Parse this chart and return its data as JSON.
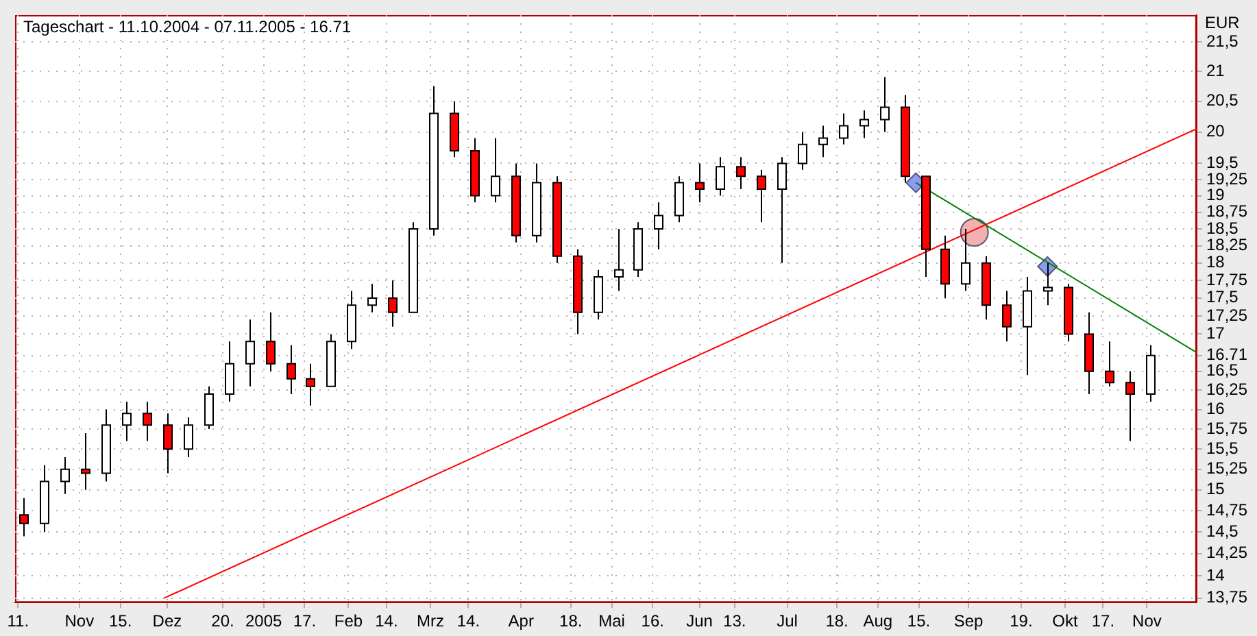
{
  "chart_data": {
    "type": "candlestick",
    "title": "Tageschart - 11.10.2004 - 07.11.2005 - 16.71",
    "ylabel": "EUR",
    "x": [
      "2004-10-13",
      "2004-10-20",
      "2004-10-27",
      "2004-11-03",
      "2004-11-10",
      "2004-11-17",
      "2004-11-24",
      "2004-12-01",
      "2004-12-08",
      "2004-12-15",
      "2004-12-22",
      "2004-12-29",
      "2005-01-05",
      "2005-01-12",
      "2005-01-19",
      "2005-01-26",
      "2005-02-02",
      "2005-02-09",
      "2005-02-16",
      "2005-02-23",
      "2005-03-02",
      "2005-03-09",
      "2005-03-16",
      "2005-03-23",
      "2005-03-30",
      "2005-04-06",
      "2005-04-13",
      "2005-04-20",
      "2005-04-27",
      "2005-05-04",
      "2005-05-11",
      "2005-05-18",
      "2005-05-25",
      "2005-06-01",
      "2005-06-08",
      "2005-06-15",
      "2005-06-22",
      "2005-06-29",
      "2005-07-06",
      "2005-07-13",
      "2005-07-20",
      "2005-07-27",
      "2005-08-03",
      "2005-08-10",
      "2005-08-17",
      "2005-08-24",
      "2005-08-31",
      "2005-09-07",
      "2005-09-14",
      "2005-09-21",
      "2005-09-28",
      "2005-10-05",
      "2005-10-12",
      "2005-10-19",
      "2005-10-26",
      "2005-11-02"
    ],
    "ohlc": [
      [
        14.7,
        14.9,
        14.45,
        14.6
      ],
      [
        14.6,
        15.3,
        14.5,
        15.1
      ],
      [
        15.1,
        15.4,
        14.95,
        15.25
      ],
      [
        15.25,
        15.7,
        15.0,
        15.2
      ],
      [
        15.2,
        16.0,
        15.1,
        15.8
      ],
      [
        15.8,
        16.1,
        15.6,
        15.95
      ],
      [
        15.95,
        16.1,
        15.6,
        15.8
      ],
      [
        15.8,
        15.95,
        15.2,
        15.5
      ],
      [
        15.5,
        15.9,
        15.4,
        15.8
      ],
      [
        15.8,
        16.3,
        15.75,
        16.2
      ],
      [
        16.2,
        16.9,
        16.1,
        16.6
      ],
      [
        16.6,
        17.2,
        16.3,
        16.9
      ],
      [
        16.9,
        17.3,
        16.5,
        16.6
      ],
      [
        16.6,
        16.85,
        16.2,
        16.4
      ],
      [
        16.4,
        16.6,
        16.05,
        16.3
      ],
      [
        16.3,
        17.0,
        16.3,
        16.9
      ],
      [
        16.9,
        17.6,
        16.8,
        17.4
      ],
      [
        17.4,
        17.7,
        17.3,
        17.5
      ],
      [
        17.5,
        17.75,
        17.1,
        17.3
      ],
      [
        17.3,
        18.6,
        17.3,
        18.5
      ],
      [
        18.5,
        20.75,
        18.4,
        20.3
      ],
      [
        20.3,
        20.5,
        19.6,
        19.7
      ],
      [
        19.7,
        19.9,
        18.9,
        19.0
      ],
      [
        19.0,
        19.9,
        18.9,
        19.3
      ],
      [
        19.3,
        19.5,
        18.3,
        18.4
      ],
      [
        18.4,
        19.5,
        18.3,
        19.2
      ],
      [
        19.2,
        19.3,
        18.0,
        18.1
      ],
      [
        18.1,
        18.2,
        17.0,
        17.3
      ],
      [
        17.3,
        17.9,
        17.2,
        17.8
      ],
      [
        17.8,
        18.5,
        17.6,
        17.9
      ],
      [
        17.9,
        18.6,
        17.8,
        18.5
      ],
      [
        18.5,
        18.9,
        18.2,
        18.7
      ],
      [
        18.7,
        19.3,
        18.6,
        19.2
      ],
      [
        19.2,
        19.5,
        18.9,
        19.1
      ],
      [
        19.1,
        19.6,
        19.0,
        19.45
      ],
      [
        19.45,
        19.6,
        19.1,
        19.3
      ],
      [
        19.3,
        19.4,
        18.6,
        19.1
      ],
      [
        19.1,
        19.6,
        18.0,
        19.5
      ],
      [
        19.5,
        20.0,
        19.4,
        19.8
      ],
      [
        19.8,
        20.1,
        19.6,
        19.9
      ],
      [
        19.9,
        20.3,
        19.8,
        20.1
      ],
      [
        20.1,
        20.35,
        19.9,
        20.2
      ],
      [
        20.2,
        20.9,
        20.0,
        20.4
      ],
      [
        20.4,
        20.6,
        19.2,
        19.3
      ],
      [
        19.3,
        19.3,
        17.8,
        18.2
      ],
      [
        18.2,
        18.4,
        17.5,
        17.7
      ],
      [
        17.7,
        18.5,
        17.6,
        18.0
      ],
      [
        18.0,
        18.1,
        17.2,
        17.4
      ],
      [
        17.4,
        17.6,
        16.9,
        17.1
      ],
      [
        17.1,
        17.8,
        16.45,
        17.6
      ],
      [
        17.6,
        18.0,
        17.4,
        17.65
      ],
      [
        17.65,
        17.7,
        16.9,
        17.0
      ],
      [
        17.0,
        17.3,
        16.2,
        16.5
      ],
      [
        16.5,
        16.9,
        16.3,
        16.35
      ],
      [
        16.35,
        16.5,
        15.6,
        16.2
      ],
      [
        16.2,
        16.85,
        16.1,
        16.71
      ]
    ],
    "colors": [
      "#ff0000",
      "#ffffff",
      "#ffffff",
      "#ff0000",
      "#ffffff",
      "#ffffff",
      "#ff0000",
      "#ff0000",
      "#ffffff",
      "#ffffff",
      "#ffffff",
      "#ffffff",
      "#ff0000",
      "#ff0000",
      "#ff0000",
      "#ffffff",
      "#ffffff",
      "#ffffff",
      "#ff0000",
      "#ffffff",
      "#ffffff",
      "#ff0000",
      "#ff0000",
      "#ffffff",
      "#ff0000",
      "#ffffff",
      "#ff0000",
      "#ff0000",
      "#ffffff",
      "#ffffff",
      "#ffffff",
      "#ffffff",
      "#ffffff",
      "#ff0000",
      "#ffffff",
      "#ff0000",
      "#ff0000",
      "#ffffff",
      "#ffffff",
      "#ffffff",
      "#ffffff",
      "#ffffff",
      "#ffffff",
      "#ff0000",
      "#ff0000",
      "#ff0000",
      "#ffffff",
      "#ff0000",
      "#ff0000",
      "#ffffff",
      "#ffffff",
      "#ff0000",
      "#ff0000",
      "#ff0000",
      "#ff0000",
      "#ffffff"
    ],
    "series": [
      {
        "type": "line",
        "color": "#ff0000",
        "x": [
          "2004-11-30",
          "2005-11-18"
        ],
        "values": [
          13.75,
          20.05
        ]
      },
      {
        "type": "line",
        "color": "#008000",
        "x": [
          "2005-08-14",
          "2005-11-18"
        ],
        "values": [
          19.2,
          16.75
        ]
      },
      {
        "type": "scatter",
        "marker": "diamond",
        "color": "#8c9cf0",
        "x": [
          "2005-08-14",
          "2005-09-28"
        ],
        "values": [
          19.2,
          17.95
        ]
      },
      {
        "type": "scatter",
        "marker": "circle",
        "color": "#f4b0b0",
        "x": [
          "2005-09-03"
        ],
        "values": [
          18.45
        ]
      }
    ],
    "xlim": [
      "2004-10-10",
      "2005-11-18"
    ],
    "xticks": [
      {
        "value": "2004-10-11",
        "label": "11."
      },
      {
        "value": "2004-11-01",
        "label": "Nov"
      },
      {
        "value": "2004-11-15",
        "label": "15."
      },
      {
        "value": "2004-12-01",
        "label": "Dez"
      },
      {
        "value": "2004-12-20",
        "label": "20."
      },
      {
        "value": "2005-01-03",
        "label": "2005"
      },
      {
        "value": "2005-01-17",
        "label": "17."
      },
      {
        "value": "2005-02-01",
        "label": "Feb"
      },
      {
        "value": "2005-02-14",
        "label": "14."
      },
      {
        "value": "2005-03-01",
        "label": "Mrz"
      },
      {
        "value": "2005-03-14",
        "label": "14."
      },
      {
        "value": "2005-04-01",
        "label": "Apr"
      },
      {
        "value": "2005-04-18",
        "label": "18."
      },
      {
        "value": "2005-05-02",
        "label": "Mai"
      },
      {
        "value": "2005-05-16",
        "label": "16."
      },
      {
        "value": "2005-06-01",
        "label": "Jun"
      },
      {
        "value": "2005-06-13",
        "label": "13."
      },
      {
        "value": "2005-07-01",
        "label": "Jul"
      },
      {
        "value": "2005-07-18",
        "label": "18."
      },
      {
        "value": "2005-08-01",
        "label": "Aug"
      },
      {
        "value": "2005-08-15",
        "label": "15."
      },
      {
        "value": "2005-09-01",
        "label": "Sep"
      },
      {
        "value": "2005-09-19",
        "label": "19."
      },
      {
        "value": "2005-10-04",
        "label": "Okt"
      },
      {
        "value": "2005-10-17",
        "label": "17."
      },
      {
        "value": "2005-11-01",
        "label": "Nov"
      }
    ],
    "ylim": [
      13.74,
      21.97
    ],
    "yticks": [
      {
        "value": 13.75,
        "label": "13,75"
      },
      14,
      {
        "value": 14.25,
        "label": "14,25"
      },
      {
        "value": 14.5,
        "label": "14,5"
      },
      {
        "value": 14.75,
        "label": "14,75"
      },
      15,
      {
        "value": 15.25,
        "label": "15,25"
      },
      {
        "value": 15.5,
        "label": "15,5"
      },
      {
        "value": 15.75,
        "label": "15,75"
      },
      16,
      {
        "value": 16.25,
        "label": "16,25"
      },
      {
        "value": 16.5,
        "label": "16,5"
      },
      16.71,
      17,
      {
        "value": 17.25,
        "label": "17,25"
      },
      {
        "value": 17.5,
        "label": "17,5"
      },
      {
        "value": 17.75,
        "label": "17,75"
      },
      18,
      {
        "value": 18.25,
        "label": "18,25"
      },
      {
        "value": 18.5,
        "label": "18,5"
      },
      {
        "value": 18.75,
        "label": "18,75"
      },
      19,
      {
        "value": 19.25,
        "label": "19,25"
      },
      {
        "value": 19.5,
        "label": "19,5"
      },
      20,
      {
        "value": 20.5,
        "label": "20,5"
      },
      21,
      {
        "value": 21.5,
        "label": "21,5"
      }
    ],
    "log": "y",
    "grid": true
  }
}
